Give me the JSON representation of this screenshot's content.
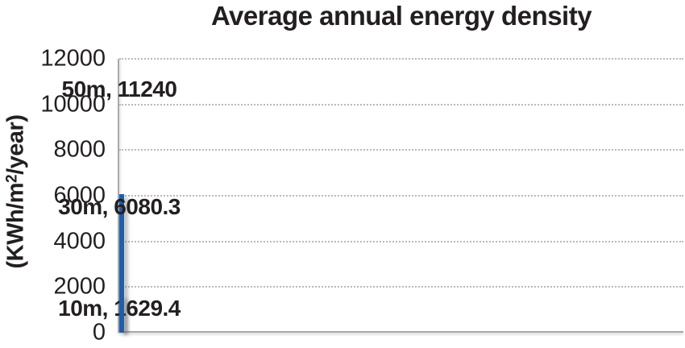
{
  "title": "Average annual energy density",
  "y_axis": {
    "label_pre": "(KWh/m",
    "label_sup": "2",
    "label_post": "/year)"
  },
  "chart_data": {
    "type": "bar",
    "title": "Average annual energy density",
    "ylabel": "(KWh/m^2/year)",
    "ylim": [
      0,
      12000
    ],
    "ytick_interval": 2000,
    "yticks": [
      0,
      2000,
      4000,
      6000,
      8000,
      10000,
      12000
    ],
    "grid": "horizontal dotted gridlines at each ytick",
    "legend": "none",
    "categories": [
      "10m",
      "30m",
      "50m"
    ],
    "values": [
      1629.4,
      6080.3,
      11240
    ],
    "data_labels": [
      "10m, 1629.4",
      "30m, 6080.3",
      "50m, 11240"
    ],
    "bar_styles": [
      {
        "fill": "#2067B1",
        "border": "#FDB814"
      },
      {
        "fill": "#29AAE2",
        "border": "#1F5FA9"
      },
      {
        "fill": "#F48C9D",
        "border": "none"
      }
    ]
  },
  "colors": {
    "text": "#231F20",
    "axis_line": "#A9A9A9",
    "gridline": "#B9B9B9",
    "background": "#FFFFFF"
  }
}
